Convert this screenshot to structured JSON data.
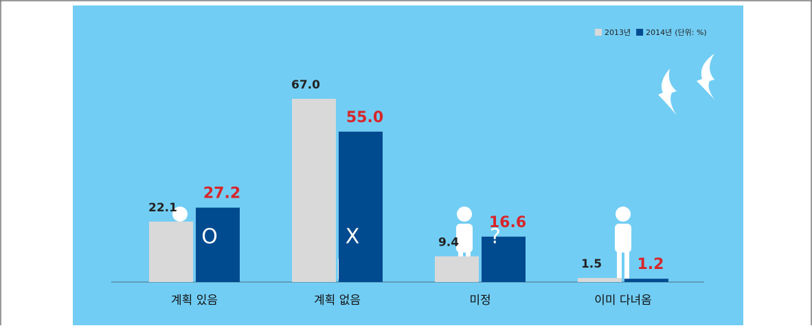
{
  "chart_data": {
    "type": "bar",
    "categories": [
      "계획 있음",
      "계획 없음",
      "미정",
      "이미 다녀옴"
    ],
    "series": [
      {
        "name": "2013년",
        "color": "#d9d9d9",
        "label_color": "#222222",
        "values": [
          22.1,
          67.0,
          9.4,
          1.5
        ],
        "value_labels": [
          "22.1",
          "67.0",
          "9.4",
          "1.5"
        ]
      },
      {
        "name": "2014년",
        "color": "#004a8f",
        "label_color": "#d7262b",
        "values": [
          27.2,
          55.0,
          16.6,
          1.2
        ],
        "value_labels": [
          "27.2",
          "55.0",
          "16.6",
          "1.2"
        ]
      }
    ],
    "unit_note": "(단위: %)",
    "annotations": [
      "O",
      "X",
      "?"
    ],
    "background": "#72cdf4"
  }
}
